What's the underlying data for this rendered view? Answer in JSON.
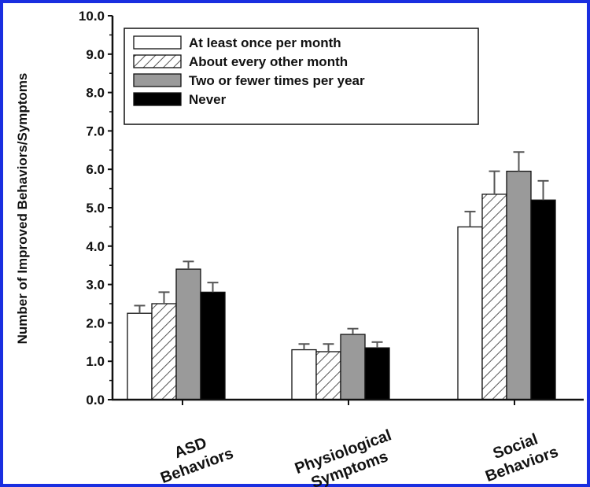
{
  "chart_data": {
    "type": "bar",
    "title": "",
    "xlabel": "",
    "ylabel": "Number of Improved Behaviors/Symptoms",
    "ylim": [
      0,
      10
    ],
    "yticks": [
      "0.0",
      "1.0",
      "2.0",
      "3.0",
      "4.0",
      "5.0",
      "6.0",
      "7.0",
      "8.0",
      "9.0",
      "10.0"
    ],
    "categories": [
      [
        "ASD",
        "Behaviors"
      ],
      [
        "Physiological",
        "Symptoms"
      ],
      [
        "Social",
        "Behaviors"
      ]
    ],
    "legend_position": "top",
    "grid": false,
    "series": [
      {
        "name": "At least once per month",
        "values": [
          2.25,
          1.3,
          4.5
        ],
        "errors": [
          0.2,
          0.15,
          0.4
        ],
        "fill": "white"
      },
      {
        "name": "About every other month",
        "values": [
          2.5,
          1.25,
          5.35
        ],
        "errors": [
          0.3,
          0.2,
          0.6
        ],
        "fill": "hatch"
      },
      {
        "name": "Two or fewer times per year",
        "values": [
          3.4,
          1.7,
          5.95
        ],
        "errors": [
          0.2,
          0.15,
          0.5
        ],
        "fill": "gray"
      },
      {
        "name": "Never",
        "values": [
          2.8,
          1.35,
          5.2
        ],
        "errors": [
          0.25,
          0.15,
          0.5
        ],
        "fill": "black"
      }
    ],
    "colors": {
      "gray": "#9a9a9a",
      "black": "#000000",
      "white": "#ffffff",
      "border": "#1a2ee0"
    }
  }
}
